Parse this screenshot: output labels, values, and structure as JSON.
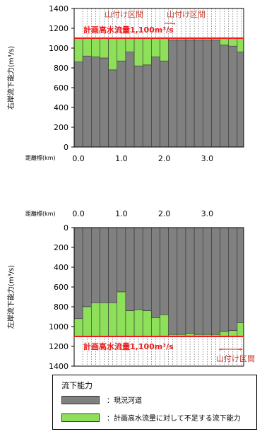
{
  "chart_data": [
    {
      "type": "bar",
      "ylabel": "右岸流下能力(m³/s)",
      "xlabel": "距離標(km)",
      "ylim": [
        0,
        1400
      ],
      "y_ticks": [
        "0",
        "200",
        "400",
        "600",
        "800",
        "1000",
        "1200",
        "1400"
      ],
      "x_ticks": [
        {
          "label": "0.0",
          "value": 0.0
        },
        {
          "label": "1.0",
          "value": 1.0
        },
        {
          "label": "2.0",
          "value": 2.0
        },
        {
          "label": "3.0",
          "value": 3.0
        }
      ],
      "x_range": [
        -0.1,
        3.85
      ],
      "bin_width": 0.2,
      "bins_start": [
        -0.1,
        0.1,
        0.3,
        0.5,
        0.7,
        0.9,
        1.1,
        1.3,
        1.5,
        1.7,
        1.9,
        2.1,
        2.3,
        2.5,
        2.7,
        2.9,
        3.1,
        3.3,
        3.5,
        3.7
      ],
      "series": [
        {
          "name": "現況河道",
          "values": [
            860,
            920,
            910,
            900,
            780,
            870,
            960,
            820,
            830,
            910,
            870,
            1080,
            1080,
            1080,
            1080,
            1080,
            1080,
            1030,
            1020,
            960
          ]
        },
        {
          "name": "計画高水流量に対して不足する流下能力",
          "values": [
            240,
            180,
            190,
            200,
            320,
            230,
            140,
            280,
            270,
            190,
            230,
            20,
            20,
            20,
            20,
            20,
            20,
            70,
            80,
            140
          ]
        }
      ],
      "plan_flow": {
        "value": 1100,
        "label": "計画高水流量1,100m³/s"
      },
      "section_label": "山付け区間",
      "section_labels": [
        "山付け区間",
        "山付け区間"
      ],
      "grid": "vertical-dotted",
      "inverted": false
    },
    {
      "type": "bar",
      "ylabel": "左岸流下能力(m³/s)",
      "xlabel": "距離標(km)",
      "ylim": [
        0,
        1400
      ],
      "y_ticks": [
        "0",
        "200",
        "400",
        "600",
        "800",
        "1000",
        "1200",
        "1400"
      ],
      "x_ticks": [
        {
          "label": "0.0",
          "value": 0.0
        },
        {
          "label": "1.0",
          "value": 1.0
        },
        {
          "label": "2.0",
          "value": 2.0
        },
        {
          "label": "3.0",
          "value": 3.0
        }
      ],
      "x_range": [
        -0.1,
        3.85
      ],
      "bin_width": 0.2,
      "bins_start": [
        -0.1,
        0.1,
        0.3,
        0.5,
        0.7,
        0.9,
        1.1,
        1.3,
        1.5,
        1.7,
        1.9,
        2.1,
        2.3,
        2.5,
        2.7,
        2.9,
        3.1,
        3.3,
        3.5,
        3.7
      ],
      "series": [
        {
          "name": "現況河道",
          "values": [
            920,
            800,
            760,
            760,
            760,
            650,
            840,
            830,
            840,
            910,
            880,
            1080,
            1080,
            1070,
            1080,
            1080,
            1080,
            1050,
            1040,
            960
          ]
        },
        {
          "name": "計画高水流量に対して不足する流下能力",
          "values": [
            180,
            300,
            340,
            340,
            340,
            450,
            260,
            270,
            260,
            190,
            220,
            20,
            20,
            30,
            20,
            20,
            20,
            50,
            60,
            140
          ]
        }
      ],
      "plan_flow": {
        "value": 1100,
        "label": "計画高水流量1,100m³/s"
      },
      "section_label": "山付け区間",
      "section_labels": [
        "山付け区間"
      ],
      "grid": "vertical-dotted",
      "inverted": true
    }
  ],
  "legend": {
    "title": "流下能力",
    "items": [
      {
        "label": "：現況河道",
        "color": "#808080"
      },
      {
        "label": "：計画高水流量に対して不足する流下能力",
        "color": "#8ee05a"
      }
    ]
  },
  "colors": {
    "existing": "#808080",
    "shortfall": "#8ee05a",
    "plan_line": "#ee1c1c",
    "annotation": "#c0392b"
  }
}
